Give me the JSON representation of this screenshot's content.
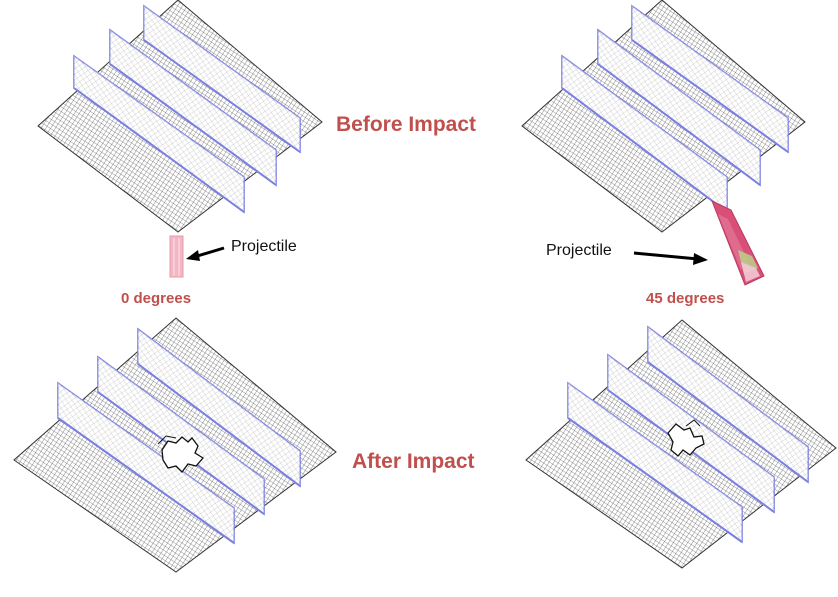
{
  "headings": {
    "before_impact": "Before Impact",
    "after_impact": "After Impact"
  },
  "angles": {
    "left": "0 degrees",
    "right": "45 degrees"
  },
  "callouts": {
    "projectile_left": "Projectile",
    "projectile_right": "Projectile"
  },
  "colors": {
    "label_red": "#c0504d",
    "mesh_line": "#3a3a3a",
    "stiffener": "#7b7fe0",
    "projectile_0": "#f4b6c4",
    "projectile_45": "#d84f78"
  }
}
